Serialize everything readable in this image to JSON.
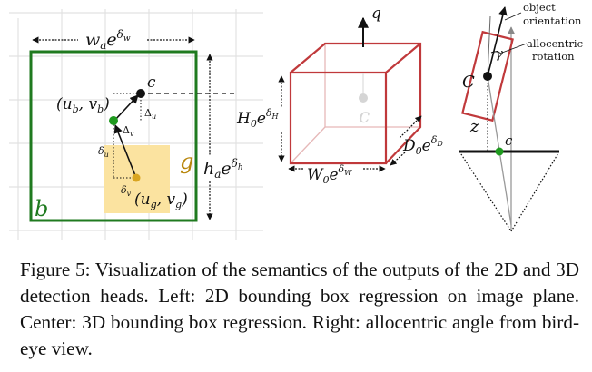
{
  "figure": {
    "left_panel": {
      "width_label": "w_a e^{δ_w}",
      "width_label_base": "w",
      "width_label_sub": "a",
      "width_label_exp": "e",
      "width_label_sup": "δ",
      "width_label_supsub": "w",
      "height_label_base": "h",
      "height_label_sub": "a",
      "height_label_exp": "e",
      "height_label_sup": "δ",
      "height_label_supsub": "h",
      "box_label_b": "b",
      "box_label_g": "g",
      "point_c": "c",
      "point_b": "(u",
      "point_b_sub": "b",
      "point_b_mid": ", v",
      "point_b_sub2": "b",
      "point_b_end": ")",
      "point_g": "(u",
      "point_g_sub": "g",
      "point_g_mid": ", v",
      "point_g_sub2": "g",
      "point_g_end": ")",
      "delta_u_top": "Δ",
      "delta_u_top_sub": "u",
      "delta_v_top": "Δ",
      "delta_v_top_sub": "v",
      "delta_u_left": "δ",
      "delta_u_left_sub": "u",
      "delta_v_bottom": "δ",
      "delta_v_bottom_sub": "v"
    },
    "center_panel": {
      "axis_q": "q",
      "center_c": "c",
      "height_base": "H",
      "height_sub": "0",
      "height_exp": "e",
      "height_sup": "δ",
      "height_supsub": "H",
      "depth_base": "D",
      "depth_sub": "0",
      "depth_exp": "e",
      "depth_sup": "δ",
      "depth_supsub": "D",
      "width_base": "W",
      "width_sub": "0",
      "width_exp": "e",
      "width_sup": "δ",
      "width_supsub": "W"
    },
    "right_panel": {
      "object_label_line1": "object",
      "object_label_line2": "orientation",
      "allocentric_line1": "allocentric",
      "allocentric_line2": "rotation",
      "gamma": "γ",
      "big_c": "C",
      "z": "z",
      "small_c": "c"
    },
    "colors": {
      "green": "#1f7a1f",
      "red": "#c0393b",
      "yellow": "#fbe3a0",
      "gold": "#b8860b",
      "grid": "#e3e3e3"
    }
  },
  "caption": {
    "label": "Figure 5:",
    "text": " Visualization of the semantics of the outputs of the 2D and 3D detection heads. Left: 2D bounding box regression on image plane. Center: 3D bounding box regression. Right: allocentric angle from bird-eye view."
  }
}
